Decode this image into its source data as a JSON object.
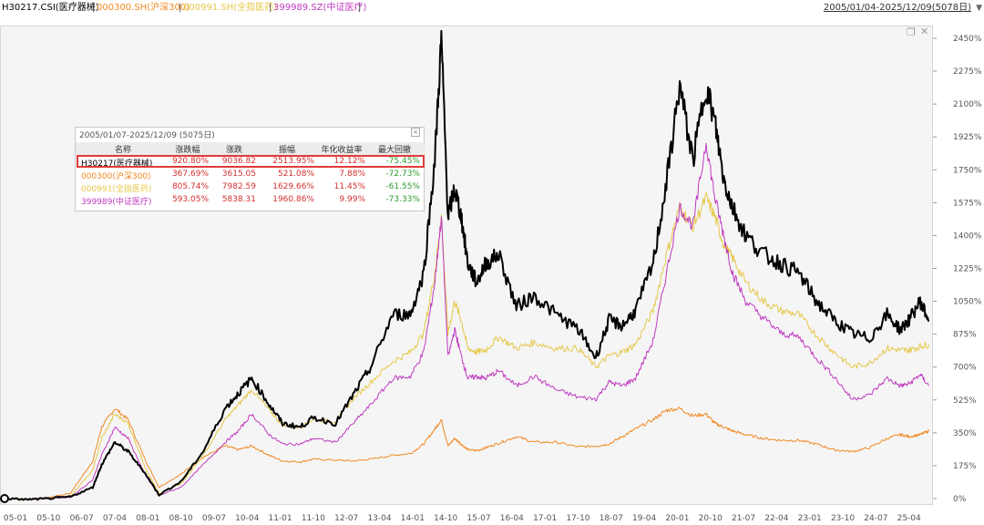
{
  "topbar": {
    "items": [
      {
        "text": "H30217.CSI(医疗器械)",
        "color": "#000000"
      },
      {
        "text": "|",
        "color": "#444444",
        "sep": true
      },
      {
        "text": "000300.SH(沪深300)",
        "color": "#f08a24"
      },
      {
        "text": "|",
        "color": "#444444",
        "sep": true
      },
      {
        "text": "000991.SH(全指医药)",
        "color": "#e6c84a"
      },
      {
        "text": "|",
        "color": "#444444",
        "sep": true
      },
      {
        "text": "399989.SZ(中证医疗)",
        "color": "#c03ac0"
      },
      {
        "text": "|",
        "color": "#444444",
        "sep": true
      }
    ],
    "date_range": "2005/01/04-2025/12/09(5078日)",
    "dropdown_icon": "triangle-down-icon"
  },
  "legend_box": {
    "title": "2005/01/07-2025/12/09 (5075日)",
    "headers": [
      "名称",
      "涨跌幅",
      "涨跌",
      "振幅",
      "年化收益率",
      "最大回撤"
    ],
    "rows": [
      {
        "name": "H30217(医疗器械)",
        "change_pct": "920.80%",
        "change": "9036.82",
        "amplitude": "2513.95%",
        "annual": "12.12%",
        "drawdown": "-75.45%",
        "color": "#000000",
        "highlight": true
      },
      {
        "name": "000300(沪深300)",
        "change_pct": "367.69%",
        "change": "3615.05",
        "amplitude": "521.08%",
        "annual": "7.88%",
        "drawdown": "-72.73%",
        "color": "#f08a24",
        "highlight": false
      },
      {
        "name": "000991(全指医药)",
        "change_pct": "805.74%",
        "change": "7982.59",
        "amplitude": "1629.66%",
        "annual": "11.45%",
        "drawdown": "-61.55%",
        "color": "#e6c84a",
        "highlight": false
      },
      {
        "name": "399989(中证医疗)",
        "change_pct": "593.05%",
        "change": "5838.31",
        "amplitude": "1960.86%",
        "annual": "9.99%",
        "drawdown": "-73.33%",
        "color": "#c03ac0",
        "highlight": false
      }
    ],
    "positive_color": "#d32f2f",
    "negative_color": "#2e9a2e"
  },
  "chart_data": {
    "type": "line",
    "y_unit": "%",
    "ylim": [
      -5,
      2500
    ],
    "y_ticks": [
      0,
      175,
      350,
      525,
      700,
      875,
      1050,
      1225,
      1400,
      1575,
      1750,
      1925,
      2100,
      2275,
      2450
    ],
    "y_tick_labels": [
      "0%",
      "175%",
      "350%",
      "525%",
      "700%",
      "875%",
      "1050%",
      "1225%",
      "1400%",
      "1575%",
      "1750%",
      "1925%",
      "2100%",
      "2275%",
      "2450%"
    ],
    "x_tick_labels": [
      "05-01",
      "05-10",
      "06-07",
      "07-04",
      "08-01",
      "08-10",
      "09-07",
      "10-04",
      "11-01",
      "11-10",
      "12-07",
      "13-04",
      "14-01",
      "14-10",
      "15-07",
      "16-04",
      "17-01",
      "17-10",
      "18-07",
      "19-04",
      "20-01",
      "20-10",
      "21-07",
      "22-04",
      "23-01",
      "23-10",
      "24-07",
      "25-04"
    ],
    "x_tick_pos": [
      0,
      0.75,
      1.5,
      2.25,
      3.0,
      3.75,
      4.5,
      5.25,
      6.0,
      6.75,
      7.5,
      8.25,
      9.0,
      9.75,
      10.5,
      11.25,
      12.0,
      12.75,
      13.5,
      14.25,
      15.0,
      15.75,
      16.5,
      17.25,
      18.0,
      18.75,
      19.5,
      20.25
    ],
    "x": [
      0,
      0.5,
      1.0,
      1.5,
      2.0,
      2.2,
      2.5,
      2.8,
      3.2,
      3.5,
      4.0,
      4.5,
      5.0,
      5.3,
      5.6,
      6.0,
      6.3,
      6.7,
      7.0,
      7.5,
      7.9,
      8.3,
      8.8,
      9.2,
      9.5,
      9.75,
      9.9,
      10.05,
      10.2,
      10.35,
      10.5,
      10.7,
      10.9,
      11.2,
      11.6,
      12.0,
      12.5,
      13.0,
      13.4,
      13.7,
      14.0,
      14.3,
      14.7,
      15.0,
      15.3,
      15.6,
      15.9,
      16.1,
      16.3,
      16.5,
      16.8,
      17.2,
      17.6,
      18.0,
      18.4,
      18.8,
      19.2,
      19.6,
      20.0,
      20.3,
      20.5,
      20.75,
      20.95
    ],
    "series": [
      {
        "name": "H30217(医疗器械)",
        "color": "#000000",
        "width": 2,
        "values": [
          0,
          -5,
          0,
          10,
          60,
          180,
          300,
          250,
          130,
          20,
          90,
          250,
          480,
          560,
          640,
          500,
          400,
          380,
          430,
          400,
          550,
          700,
          980,
          980,
          1200,
          1800,
          2450,
          1500,
          1650,
          1500,
          1250,
          1150,
          1250,
          1300,
          1020,
          1080,
          980,
          900,
          750,
          950,
          920,
          1000,
          1250,
          1680,
          2200,
          1800,
          2200,
          2000,
          1700,
          1550,
          1400,
          1300,
          1250,
          1200,
          1050,
          950,
          880,
          850,
          980,
          900,
          950,
          1050,
          950
        ]
      },
      {
        "name": "000300(沪深300)",
        "color": "#f08a24",
        "width": 1,
        "values": [
          0,
          -3,
          5,
          30,
          200,
          380,
          480,
          420,
          200,
          60,
          130,
          220,
          280,
          260,
          280,
          230,
          200,
          195,
          210,
          205,
          200,
          210,
          230,
          240,
          290,
          370,
          420,
          280,
          320,
          290,
          260,
          255,
          270,
          295,
          330,
          300,
          300,
          275,
          280,
          290,
          330,
          370,
          420,
          470,
          480,
          440,
          450,
          400,
          380,
          360,
          340,
          320,
          310,
          310,
          290,
          260,
          250,
          270,
          320,
          340,
          330,
          340,
          360
        ]
      },
      {
        "name": "000991(全指医药)",
        "color": "#e6c84a",
        "width": 1,
        "values": [
          0,
          -4,
          2,
          15,
          150,
          320,
          450,
          400,
          160,
          25,
          80,
          230,
          420,
          500,
          580,
          470,
          390,
          380,
          420,
          410,
          530,
          620,
          730,
          780,
          880,
          1200,
          1500,
          880,
          1050,
          950,
          800,
          780,
          790,
          860,
          800,
          830,
          800,
          800,
          700,
          760,
          780,
          820,
          1000,
          1300,
          1550,
          1450,
          1600,
          1500,
          1350,
          1280,
          1150,
          1050,
          1000,
          980,
          870,
          780,
          700,
          720,
          800,
          790,
          790,
          810,
          820
        ]
      },
      {
        "name": "399989(中证医疗)",
        "color": "#c03ac0",
        "width": 1,
        "values": [
          0,
          -5,
          0,
          8,
          100,
          230,
          380,
          320,
          120,
          18,
          60,
          180,
          300,
          360,
          450,
          340,
          290,
          290,
          320,
          300,
          400,
          500,
          640,
          650,
          780,
          1150,
          1500,
          750,
          900,
          760,
          640,
          650,
          640,
          680,
          600,
          650,
          580,
          540,
          530,
          620,
          600,
          640,
          840,
          1200,
          1550,
          1450,
          1900,
          1600,
          1400,
          1200,
          1050,
          960,
          880,
          860,
          750,
          650,
          530,
          550,
          640,
          600,
          610,
          660,
          600
        ]
      }
    ],
    "grid": false,
    "legend": "top-left table"
  }
}
